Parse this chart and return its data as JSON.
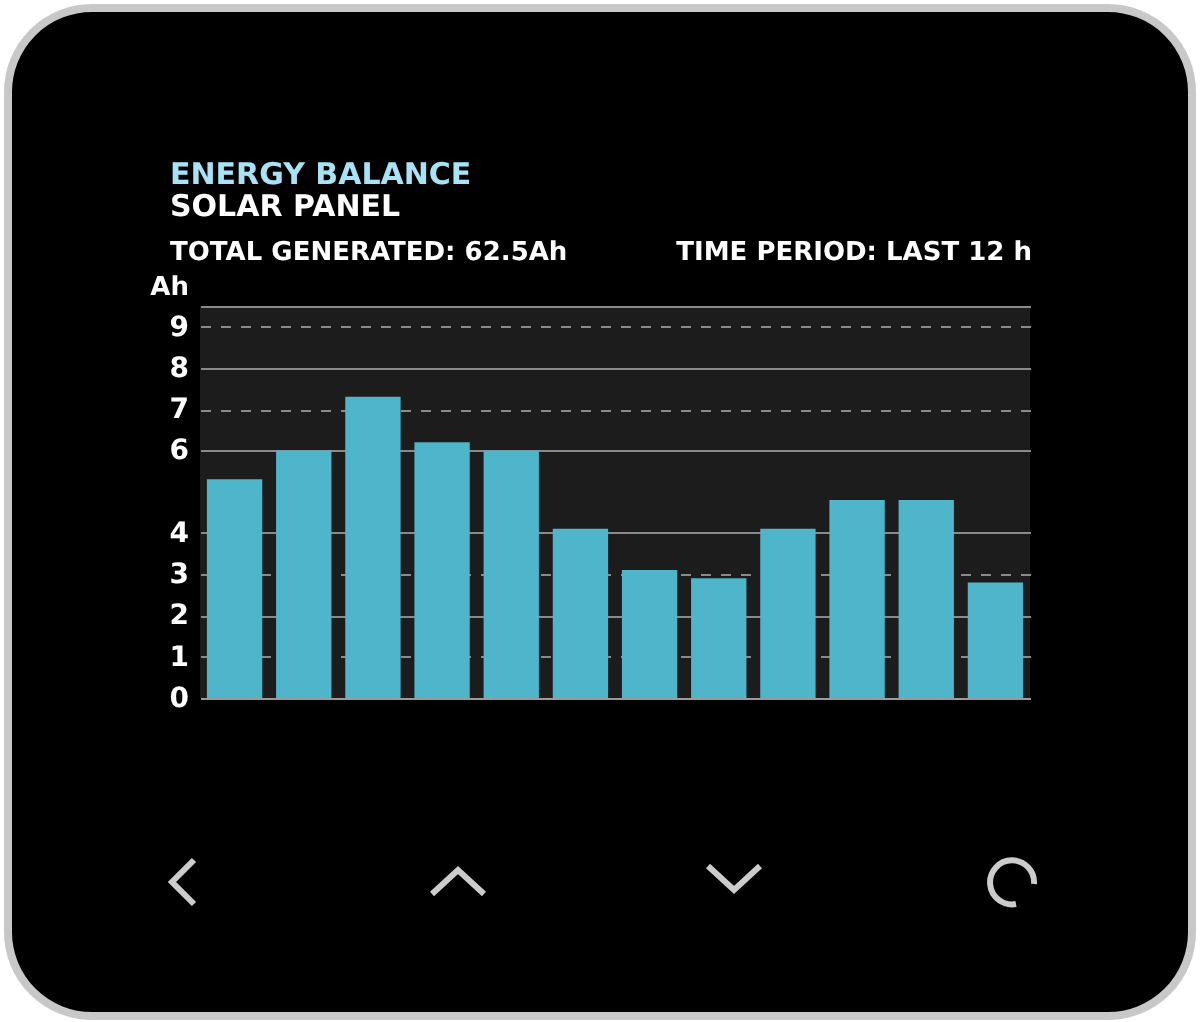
{
  "chart_data": {
    "type": "bar",
    "title": "ENERGY BALANCE",
    "subtitle": "SOLAR PANEL",
    "ylabel": "Ah",
    "annotations": [
      "TOTAL GENERATED: 62.5Ah",
      "TIME PERIOD: LAST 12 h"
    ],
    "categories": [
      null,
      null,
      null,
      null,
      null,
      null,
      null,
      null,
      null,
      null,
      null,
      null
    ],
    "values": [
      5.3,
      6.0,
      7.3,
      6.2,
      6.0,
      4.1,
      3.1,
      2.9,
      4.1,
      4.8,
      4.8,
      2.8
    ],
    "color": "#4fb5cb",
    "ylim": [
      0,
      9.5
    ],
    "yticks": [
      0,
      1,
      2,
      3,
      4,
      6,
      7,
      8,
      9,
      {
        "value": 9.5,
        "label": null
      }
    ],
    "grid": "y",
    "tick_labels": "y"
  }
}
